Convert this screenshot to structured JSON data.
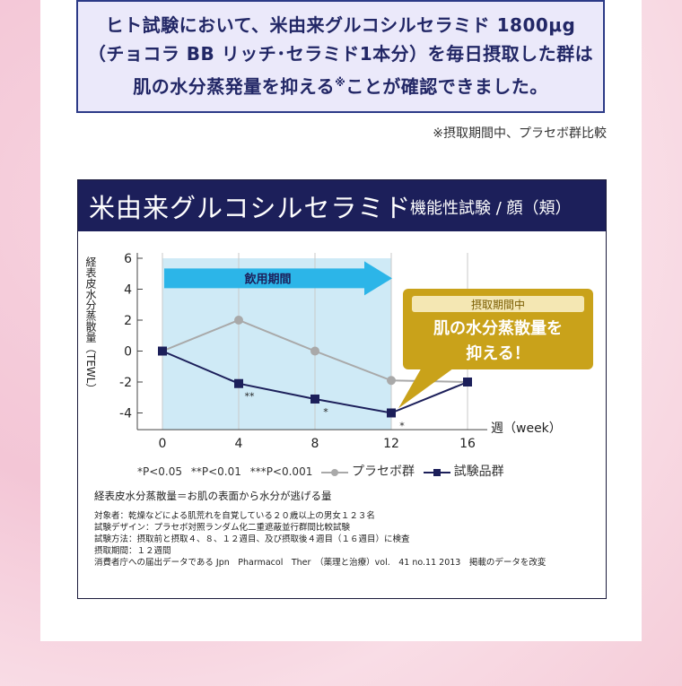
{
  "headline": {
    "line1": "ヒト試験において、米由来グルコシルセラミド 1800μg",
    "line2": "（チョコラ BB リッチ･セラミド1本分）を毎日摂取した群は",
    "line3_a": "肌の水分蒸発量を抑える",
    "line3_mark": "※",
    "line3_b": "ことが確認できました。"
  },
  "footnote_top": "※摂取期間中、プラセボ群比較",
  "chart_header": {
    "title": "米由来グルコシルセラミド",
    "subtitle": "機能性試験 / 顔（頬）"
  },
  "chart_data": {
    "type": "line",
    "x": [
      0,
      4,
      8,
      12,
      16
    ],
    "xlabel": "週（week）",
    "ylabel": "経表皮水分蒸散量（TEWL）",
    "ylim": [
      -4.5,
      6
    ],
    "yticks": [
      6,
      4,
      2,
      0,
      -2,
      -4
    ],
    "xticks": [
      0,
      4,
      8,
      12,
      16
    ],
    "grid": "vertical",
    "series": [
      {
        "name": "プラセボ群",
        "color": "#a9a9a9",
        "marker": "circle",
        "values": [
          0,
          2,
          0,
          -1.9,
          -2
        ]
      },
      {
        "name": "試験品群",
        "color": "#1c1f5a",
        "marker": "square",
        "values": [
          0,
          -2.1,
          -3.1,
          -4,
          -2
        ]
      }
    ],
    "significance": [
      {
        "x": 4,
        "label": "**"
      },
      {
        "x": 8,
        "label": "*"
      },
      {
        "x": 12,
        "label": "*"
      }
    ],
    "period_label": "飲用期間",
    "period_x": [
      0,
      12
    ],
    "callout": {
      "tag": "摂取期間中",
      "line1": "肌の水分蒸散量を",
      "line2": "抑える！"
    },
    "sig_legend": [
      "*P<0.05",
      "**P<0.01",
      "***P<0.001"
    ],
    "colors": {
      "period_fill": "#cfeaf6",
      "arrow": "#2cb5e8",
      "callout": "#c9a21a"
    }
  },
  "notes": {
    "head": "経表皮水分蒸散量＝お肌の表面から水分が逃げる量",
    "lines": [
      "対象者：乾燥などによる肌荒れを自覚している２０歳以上の男女１２３名",
      "試験デザイン：プラセボ対照ランダム化二重遮蔽並行群間比較試験",
      "試験方法：摂取前と摂取４、８、１２週目、及び摂取後４週目（１６週目）に検査",
      "摂取期間：１２週間",
      "消費者庁への届出データである Jpn　Pharmacol　Ther　（薬理と治療）vol.　41 no.11 2013　掲載のデータを改変"
    ]
  }
}
